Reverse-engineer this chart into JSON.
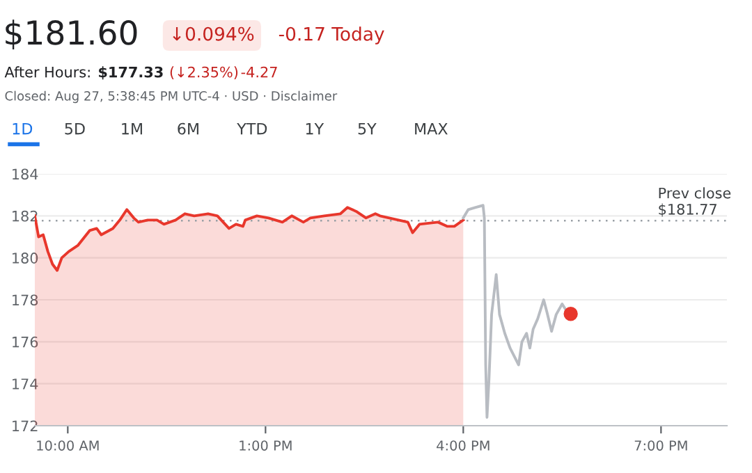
{
  "chart_data": {
    "type": "line",
    "title": "$181.60",
    "annotations": [
      "↓0.094%",
      "-0.17 Today",
      "After Hours:",
      "$177.33",
      "(↓2.35%)",
      "-4.27",
      "Closed: Aug 27, 5:38:45 PM UTC-4 · USD · Disclaimer",
      "1D",
      "5D",
      "1M",
      "6M",
      "YTD",
      "1Y",
      "5Y",
      "MAX"
    ],
    "series": [
      {
        "type": "area",
        "color": "#e8372c",
        "x": [
          9.5,
          9.557,
          9.627,
          9.698,
          9.768,
          9.839,
          9.909,
          10.015,
          10.156,
          10.332,
          10.438,
          10.508,
          10.684,
          10.79,
          10.896,
          11.001,
          11.072,
          11.213,
          11.354,
          11.459,
          11.636,
          11.777,
          11.918,
          12.129,
          12.27,
          12.446,
          12.552,
          12.658,
          12.693,
          12.869,
          13.045,
          13.256,
          13.398,
          13.574,
          13.68,
          13.891,
          14.137,
          14.243,
          14.384,
          14.525,
          14.666,
          14.736,
          15.159,
          15.231,
          15.336,
          15.617,
          15.759,
          15.865,
          16.0
        ],
        "values": [
          182.0,
          181.0,
          181.1,
          180.3,
          179.7,
          179.4,
          180.0,
          180.3,
          180.6,
          181.3,
          181.4,
          181.1,
          181.4,
          181.8,
          182.3,
          181.9,
          181.7,
          181.8,
          181.8,
          181.6,
          181.8,
          182.1,
          182.0,
          182.1,
          182.0,
          181.4,
          181.6,
          181.5,
          181.8,
          182.0,
          181.9,
          181.7,
          182.0,
          181.7,
          181.9,
          182.0,
          182.1,
          182.4,
          182.2,
          181.9,
          182.1,
          182.0,
          181.7,
          181.2,
          181.6,
          181.7,
          181.5,
          181.5,
          181.8
        ]
      },
      {
        "color": "#b8bcc2",
        "x": [
          16.0,
          16.076,
          16.18,
          16.3,
          16.32,
          16.34,
          16.36,
          16.39,
          16.43,
          16.5,
          16.55,
          16.63,
          16.71,
          16.84,
          16.89,
          16.96,
          17.01,
          17.06,
          17.13,
          17.22,
          17.27,
          17.34,
          17.41,
          17.5,
          17.56,
          17.63
        ],
        "values": [
          181.9,
          182.3,
          182.4,
          182.5,
          181.9,
          174.9,
          172.4,
          174.2,
          177.3,
          179.2,
          177.3,
          176.4,
          175.7,
          174.9,
          176.0,
          176.4,
          175.7,
          176.6,
          177.1,
          178.0,
          177.4,
          176.5,
          177.3,
          177.8,
          177.5,
          177.3
        ]
      },
      {
        "type": "scatter",
        "color": "#e8372c",
        "x": [
          17.63
        ],
        "values": [
          177.33
        ]
      }
    ],
    "xlim": [
      9.5,
      20.0
    ],
    "xticks": [
      {
        "value": 10,
        "label": "10:00 AM"
      },
      {
        "value": 13,
        "label": "1:00 PM"
      },
      {
        "value": 16,
        "label": "4:00 PM"
      },
      {
        "value": 19,
        "label": "7:00 PM"
      }
    ],
    "ylim": [
      172,
      184
    ],
    "yticks": [
      172,
      174,
      176,
      178,
      180,
      182,
      184
    ],
    "grid": "y",
    "ref_lines": [
      {
        "axis": "y",
        "value": 181.77,
        "label": "Prev close\n$181.77",
        "color": "#9aa0a6",
        "line_style": "dotted"
      }
    ]
  }
}
